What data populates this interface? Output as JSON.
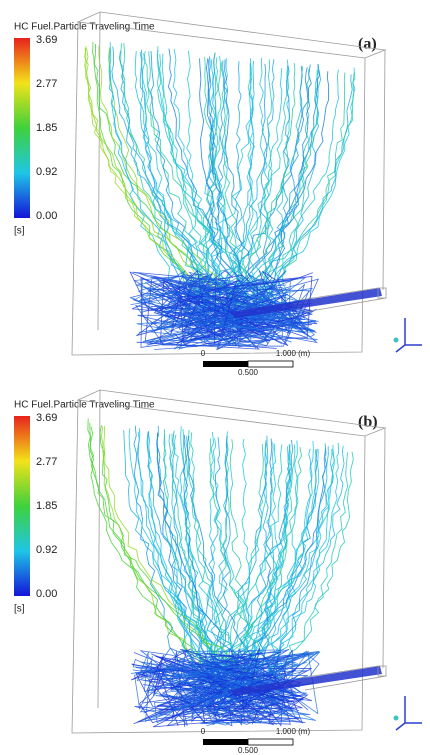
{
  "panels": [
    {
      "label": "(a)",
      "colorbar": {
        "title": "HC Fuel.Particle Traveling Time",
        "ticks": [
          "3.69",
          "2.77",
          "1.85",
          "0.92",
          "0.00"
        ],
        "unit": "[s]"
      },
      "scale_bar": {
        "start": "0",
        "end": "1.000 (m)",
        "mid": "0.500"
      }
    },
    {
      "label": "(b)",
      "colorbar": {
        "title": "HC Fuel.Particle Traveling Time",
        "ticks": [
          "3.69",
          "2.77",
          "1.85",
          "0.92",
          "0.00"
        ],
        "unit": "[s]"
      },
      "scale_bar": {
        "start": "0",
        "end": "1.000 (m)",
        "mid": "0.500"
      }
    }
  ]
}
